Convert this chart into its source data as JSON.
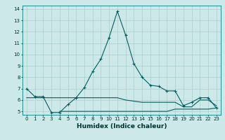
{
  "xlabel": "Humidex (Indice chaleur)",
  "background_color": "#cce8e8",
  "grid_color": "#aacfcf",
  "line_color": "#006060",
  "x_values": [
    0,
    1,
    2,
    3,
    4,
    5,
    6,
    7,
    8,
    9,
    10,
    11,
    12,
    13,
    14,
    15,
    16,
    17,
    18,
    19,
    20,
    21,
    22,
    23
  ],
  "series1": [
    7.0,
    6.3,
    6.3,
    4.9,
    4.9,
    5.6,
    6.2,
    7.1,
    8.5,
    9.6,
    11.5,
    13.8,
    11.7,
    9.2,
    8.0,
    7.3,
    7.2,
    6.8,
    6.8,
    5.5,
    5.8,
    6.2,
    6.2,
    5.3
  ],
  "series2": [
    6.2,
    6.2,
    6.2,
    6.2,
    6.2,
    6.2,
    6.2,
    6.2,
    6.2,
    6.2,
    6.2,
    6.2,
    6.0,
    5.9,
    5.8,
    5.8,
    5.8,
    5.8,
    5.8,
    5.4,
    5.4,
    6.0,
    6.0,
    5.5
  ],
  "series3": [
    null,
    null,
    null,
    null,
    5.0,
    5.0,
    5.0,
    5.0,
    5.0,
    5.0,
    5.0,
    5.0,
    5.0,
    5.0,
    5.0,
    5.0,
    5.0,
    5.0,
    5.2,
    5.2,
    5.2,
    5.2,
    5.2,
    5.3
  ],
  "ylim": [
    4.7,
    14.3
  ],
  "xlim": [
    -0.5,
    23.5
  ],
  "yticks": [
    5,
    6,
    7,
    8,
    9,
    10,
    11,
    12,
    13,
    14
  ],
  "xticks": [
    0,
    1,
    2,
    3,
    4,
    5,
    6,
    7,
    8,
    9,
    10,
    11,
    12,
    13,
    14,
    15,
    16,
    17,
    18,
    19,
    20,
    21,
    22,
    23
  ],
  "tick_fontsize": 5.0,
  "xlabel_fontsize": 6.5
}
